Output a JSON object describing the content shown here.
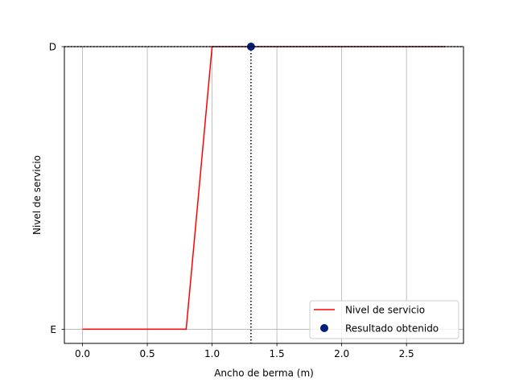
{
  "chart_data": {
    "type": "line",
    "xlabel": "Ancho de berma (m)",
    "ylabel": "Nivel de servicio",
    "xlim": [
      -0.14,
      2.94
    ],
    "ylim": [
      -0.05,
      1.0
    ],
    "xticks": [
      0.0,
      0.5,
      1.0,
      1.5,
      2.0,
      2.5
    ],
    "xtick_labels": [
      "0.0",
      "0.5",
      "1.0",
      "1.5",
      "2.0",
      "2.5"
    ],
    "yticks": [
      0,
      1
    ],
    "ytick_labels": [
      "E",
      "D"
    ],
    "grid": true,
    "legend_position": "lower-right",
    "series": [
      {
        "name": "Nivel de servicio",
        "kind": "line",
        "color": "#ff0000",
        "x": [
          0.0,
          0.8,
          1.0,
          2.8
        ],
        "y": [
          0,
          0,
          1,
          1
        ]
      },
      {
        "name": "Resultado obtenido",
        "kind": "scatter",
        "color": "#001f7a",
        "x": [
          1.3
        ],
        "y": [
          1
        ]
      }
    ],
    "reference_lines": [
      {
        "orientation": "vertical",
        "x": 1.3,
        "style": "dotted",
        "color": "#000000"
      },
      {
        "orientation": "horizontal",
        "y": 1,
        "style": "dotted",
        "color": "#000000"
      }
    ]
  }
}
